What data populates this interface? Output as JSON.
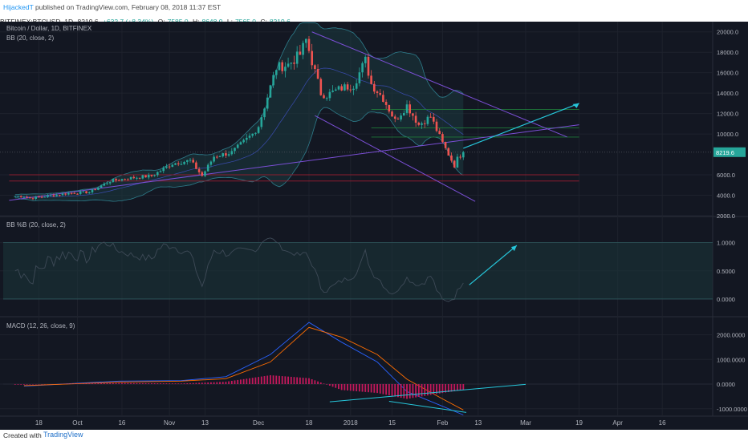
{
  "header": {
    "author": "HijackedT",
    "published_text": " published on TradingView.com, February 08, 2018 11:37 EST"
  },
  "ticker": {
    "symbol": "BITFINEX:BTCUSD, 1D",
    "last": "8219.6",
    "change": "+632.7 (+8.34%)",
    "open_label": "O:",
    "open": "7585.0",
    "high_label": "H:",
    "high": "8648.9",
    "low_label": "L:",
    "low": "7565.0",
    "close_label": "C:",
    "close": "8219.6"
  },
  "footer": {
    "created_with": "Created with",
    "brand": "TradingView"
  },
  "colors": {
    "background": "#131722",
    "grid": "#1e222d",
    "up": "#26a69a",
    "down": "#ef5350",
    "bb_line": "#2e7d8c",
    "trend_purple": "#7b4fd6",
    "support_red": "#8b1d2e",
    "resist_green": "#1f7a3a",
    "arrow_cyan": "#26c6da",
    "macd": "#2962ff",
    "signal": "#ff6d00",
    "hist_pos": "#c2185b",
    "hist_neg": "#c2185b"
  },
  "chart_data": [
    {
      "type": "candlestick",
      "title": "Bitcoin / Dollar, 1D, BITFINEX",
      "indicator_label": "BB (20, close, 2)",
      "ylim": [
        2000,
        21000
      ],
      "y_ticks": [
        "20000.0",
        "18000.0",
        "16000.0",
        "14000.0",
        "12000.0",
        "10000.0",
        "8219.6",
        "6000.0",
        "4000.0",
        "2000.0"
      ],
      "x_ticks": [
        "18",
        "Oct",
        "16",
        "Nov",
        "13",
        "Dec",
        "18",
        "2018",
        "15",
        "Feb",
        "13",
        "Mar",
        "19",
        "Apr",
        "16"
      ],
      "last_price": "8219.6",
      "close_path": [
        [
          "2017-09-13",
          3900
        ],
        [
          "2017-09-15",
          3700
        ],
        [
          "2017-09-20",
          3900
        ],
        [
          "2017-09-28",
          4200
        ],
        [
          "2017-10-05",
          4300
        ],
        [
          "2017-10-12",
          5400
        ],
        [
          "2017-10-19",
          5700
        ],
        [
          "2017-10-26",
          5900
        ],
        [
          "2017-11-02",
          7100
        ],
        [
          "2017-11-08",
          7400
        ],
        [
          "2017-11-12",
          5900
        ],
        [
          "2017-11-16",
          7800
        ],
        [
          "2017-11-22",
          8200
        ],
        [
          "2017-11-29",
          10000
        ],
        [
          "2017-12-01",
          10800
        ],
        [
          "2017-12-07",
          16500
        ],
        [
          "2017-12-11",
          16800
        ],
        [
          "2017-12-15",
          17800
        ],
        [
          "2017-12-17",
          19200
        ],
        [
          "2017-12-22",
          14000
        ],
        [
          "2017-12-24",
          13800
        ],
        [
          "2017-12-29",
          14500
        ],
        [
          "2018-01-02",
          14800
        ],
        [
          "2018-01-06",
          17200
        ],
        [
          "2018-01-08",
          14900
        ],
        [
          "2018-01-12",
          13500
        ],
        [
          "2018-01-16",
          11300
        ],
        [
          "2018-01-20",
          12800
        ],
        [
          "2018-01-24",
          10900
        ],
        [
          "2018-01-28",
          11700
        ],
        [
          "2018-02-01",
          9100
        ],
        [
          "2018-02-05",
          6900
        ],
        [
          "2018-02-06",
          7600
        ],
        [
          "2018-02-08",
          8219.6
        ]
      ],
      "support_levels": [
        6000,
        5400
      ],
      "resistance_levels": [
        9700,
        10600,
        12400
      ]
    },
    {
      "type": "line",
      "title": "BB %B (20, close, 2)",
      "ylim": [
        -0.3,
        1.45
      ],
      "y_ticks": [
        "1.0000",
        "0.5000",
        "0.0000"
      ],
      "band": [
        0,
        1
      ]
    },
    {
      "type": "line",
      "title": "MACD (12, 26, close, 9)",
      "ylim": [
        -1300,
        2700
      ],
      "y_ticks": [
        "2000.0000",
        "1000.0000",
        "0.0000",
        "-1000.0000"
      ],
      "series": [
        {
          "key": "macd",
          "points": [
            [
              "2017-09-13",
              -80
            ],
            [
              "2017-10-15",
              120
            ],
            [
              "2017-11-05",
              140
            ],
            [
              "2017-11-20",
              300
            ],
            [
              "2017-12-05",
              1200
            ],
            [
              "2017-12-18",
              2500
            ],
            [
              "2017-12-29",
              1700
            ],
            [
              "2018-01-10",
              900
            ],
            [
              "2018-01-20",
              -300
            ],
            [
              "2018-02-01",
              -900
            ],
            [
              "2018-02-08",
              -1250
            ]
          ]
        },
        {
          "key": "signal",
          "points": [
            [
              "2017-09-13",
              -60
            ],
            [
              "2017-10-15",
              80
            ],
            [
              "2017-11-05",
              120
            ],
            [
              "2017-11-20",
              220
            ],
            [
              "2017-12-05",
              900
            ],
            [
              "2017-12-18",
              2300
            ],
            [
              "2017-12-29",
              1900
            ],
            [
              "2018-01-10",
              1200
            ],
            [
              "2018-01-20",
              200
            ],
            [
              "2018-02-01",
              -600
            ],
            [
              "2018-02-08",
              -1050
            ]
          ]
        }
      ]
    }
  ]
}
